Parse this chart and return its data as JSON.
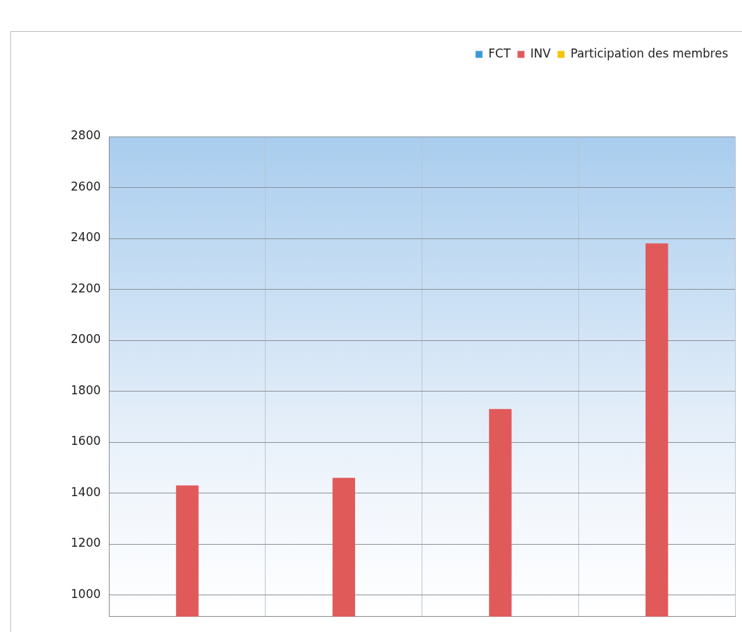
{
  "chart_data": {
    "type": "bar",
    "categories": [
      null,
      null,
      null,
      null
    ],
    "series": [
      {
        "name": "FCT",
        "color": "#3a9ad9",
        "values": [
          null,
          null,
          null,
          null
        ]
      },
      {
        "name": "INV",
        "color": "#e05a5a",
        "values": [
          1430,
          1460,
          1730,
          2380
        ]
      },
      {
        "name": "Participation des membres",
        "color": "#f2c500",
        "values": [
          null,
          null,
          null,
          null
        ]
      }
    ],
    "ylim": [
      915,
      2800
    ],
    "yticks": [
      1000,
      1200,
      1400,
      1600,
      1800,
      2000,
      2200,
      2400,
      2600,
      2800
    ],
    "grid": true,
    "legend": "top right",
    "tick_labels": "y"
  }
}
